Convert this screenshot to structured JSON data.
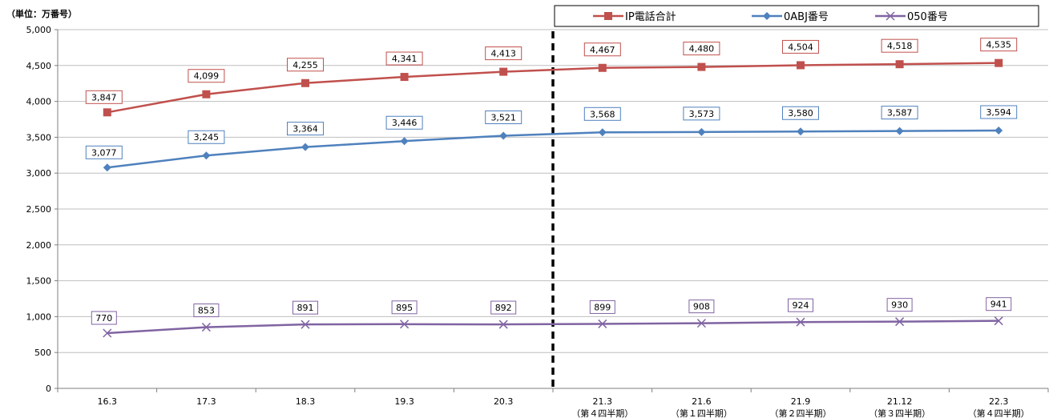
{
  "chart_data": {
    "type": "line",
    "unit_label": "（単位：万番号）",
    "categories": [
      "16.3",
      "17.3",
      "18.3",
      "19.3",
      "20.3",
      "21.3",
      "21.6",
      "21.9",
      "21.12",
      "22.3"
    ],
    "category_sublabels": [
      "",
      "",
      "",
      "",
      "",
      "（第４四半期）",
      "（第１四半期）",
      "（第２四半期）",
      "（第３四半期）",
      "（第４四半期）"
    ],
    "ylim": [
      0,
      5000
    ],
    "yticks": [
      0,
      500,
      1000,
      1500,
      2000,
      2500,
      3000,
      3500,
      4000,
      4500,
      5000
    ],
    "ytick_labels": [
      "0",
      "500",
      "1,000",
      "1,500",
      "2,000",
      "2,500",
      "3,000",
      "3,500",
      "4,000",
      "4,500",
      "5,000"
    ],
    "grid": true,
    "divider_after_category": "20.3",
    "legend_position": "top-right",
    "series": [
      {
        "name": "IP電話合計",
        "color": "#c0504d",
        "marker": "square",
        "values": [
          3847,
          4099,
          4255,
          4341,
          4413,
          4467,
          4480,
          4504,
          4518,
          4535
        ],
        "labels": [
          "3,847",
          "4,099",
          "4,255",
          "4,341",
          "4,413",
          "4,467",
          "4,480",
          "4,504",
          "4,518",
          "4,535"
        ]
      },
      {
        "name": "0ABJ番号",
        "color": "#4f81bd",
        "marker": "diamond",
        "values": [
          3077,
          3245,
          3364,
          3446,
          3521,
          3568,
          3573,
          3580,
          3587,
          3594
        ],
        "labels": [
          "3,077",
          "3,245",
          "3,364",
          "3,446",
          "3,521",
          "3,568",
          "3,573",
          "3,580",
          "3,587",
          "3,594"
        ]
      },
      {
        "name": "050番号",
        "color": "#8064a2",
        "marker": "x",
        "values": [
          770,
          853,
          891,
          895,
          892,
          899,
          908,
          924,
          930,
          941
        ],
        "labels": [
          "770",
          "853",
          "891",
          "895",
          "892",
          "899",
          "908",
          "924",
          "930",
          "941"
        ]
      }
    ]
  }
}
